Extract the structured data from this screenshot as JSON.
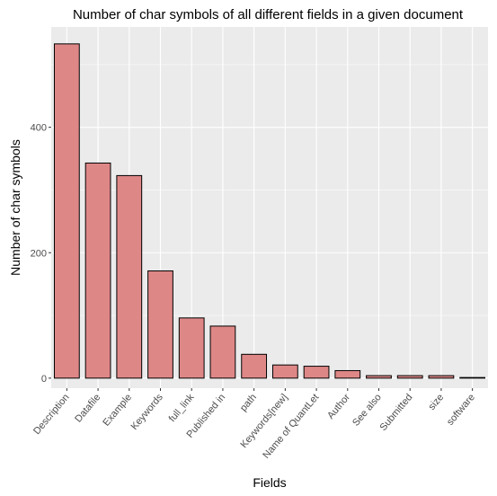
{
  "chart_data": {
    "type": "bar",
    "title": "Number of char symbols of all different fields in a given document",
    "xlabel": "Fields",
    "ylabel": "Number of char symbols",
    "categories": [
      "Description",
      "Datafile",
      "Example",
      "Keywords",
      "full_link",
      "Published in",
      "path",
      "Keywords[new]",
      "Name of QuantLet",
      "Author",
      "See also",
      "Submitted",
      "size",
      "software"
    ],
    "values": [
      533,
      343,
      323,
      171,
      96,
      83,
      38,
      21,
      19,
      12,
      4,
      4,
      4,
      1
    ],
    "ylim": [
      -16,
      560
    ],
    "yticks": [
      0,
      200,
      400
    ],
    "grid": true,
    "legend": "none",
    "colors": {
      "panel": "#ebebeb",
      "grid_major": "#ffffff",
      "bar_fill": "#de8787",
      "bar_stroke": "#000000",
      "tick_text": "#4d4d4d"
    }
  }
}
